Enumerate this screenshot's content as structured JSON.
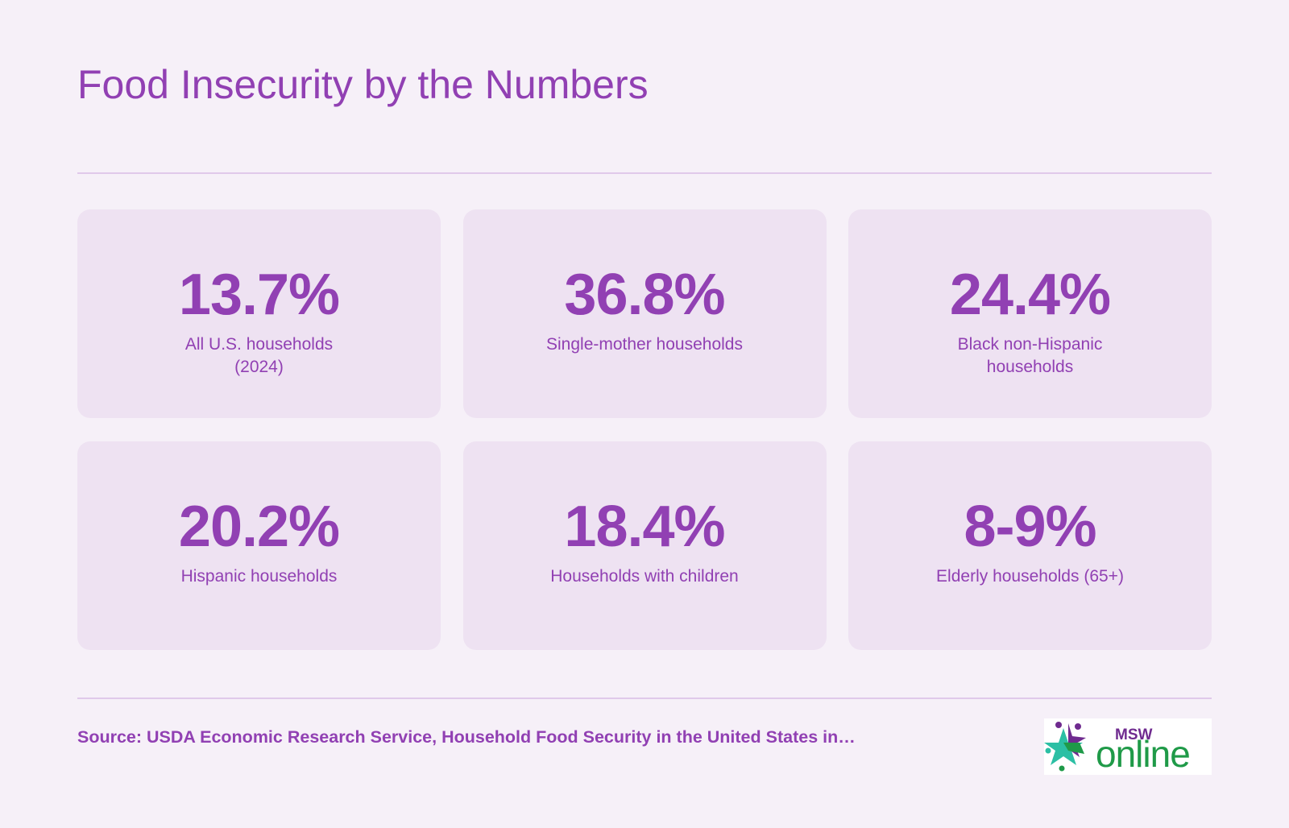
{
  "title": "Food Insecurity by the Numbers",
  "stats": [
    {
      "value": "13.7%",
      "label": "All U.S. households (2024)"
    },
    {
      "value": "36.8%",
      "label": "Single-mother households"
    },
    {
      "value": "24.4%",
      "label": "Black non-Hispanic households"
    },
    {
      "value": "20.2%",
      "label": "Hispanic households"
    },
    {
      "value": "18.4%",
      "label": "Households with children"
    },
    {
      "value": "8-9%",
      "label": "Elderly households (65+)"
    }
  ],
  "source": "Source: USDA Economic Research Service, Household Food Security in the United States in…",
  "logo": {
    "text_top": "MSW",
    "text_main": "online",
    "colors": {
      "purple": "#6f2b8f",
      "green": "#1f9a48",
      "teal": "#2bbfa4"
    }
  },
  "colors": {
    "background": "#f6f0f8",
    "card": "#eee2f2",
    "accent": "#9140b3",
    "rule": "#e0c9ea"
  }
}
